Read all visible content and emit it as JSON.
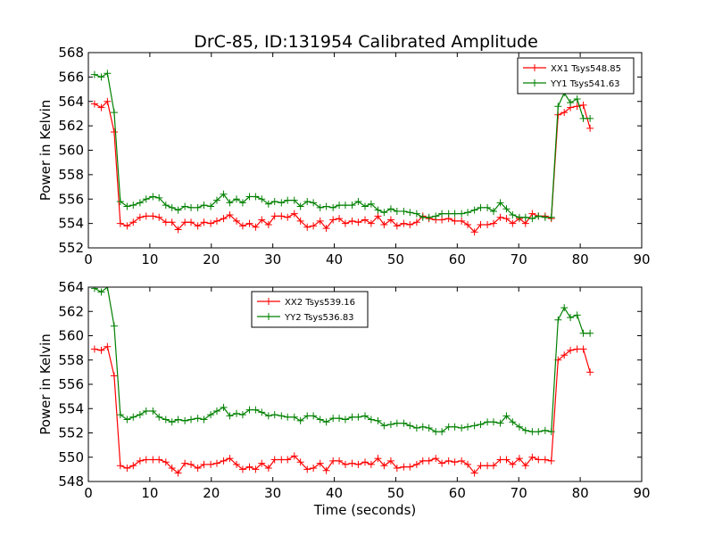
{
  "figure": {
    "title": "DrC-85, ID:131954 Calibrated Amplitude"
  },
  "chart_data": [
    {
      "type": "line",
      "title": "DrC-85, ID:131954 Calibrated Amplitude",
      "xlabel": "",
      "ylabel": "Power in Kelvin",
      "xlim": [
        0,
        90
      ],
      "ylim": [
        552,
        568
      ],
      "xticks": [
        0,
        10,
        20,
        30,
        40,
        50,
        60,
        70,
        80,
        90
      ],
      "yticks": [
        552,
        554,
        556,
        558,
        560,
        562,
        564,
        566,
        568
      ],
      "grid": false,
      "legend_position": "top-right",
      "series": [
        {
          "name": "XX1 Tsys548.85",
          "color": "#ff0000",
          "x": [
            1.0,
            2.1,
            3.1,
            4.2,
            5.2,
            6.3,
            7.3,
            8.4,
            9.4,
            10.5,
            11.5,
            12.6,
            13.6,
            14.6,
            15.7,
            16.7,
            17.8,
            18.8,
            19.9,
            20.9,
            22.0,
            23.0,
            24.1,
            25.1,
            26.2,
            27.2,
            28.2,
            29.3,
            30.3,
            31.4,
            32.4,
            33.5,
            34.5,
            35.6,
            36.6,
            37.7,
            38.7,
            39.8,
            40.8,
            41.8,
            42.9,
            43.9,
            45.0,
            46.0,
            47.1,
            48.1,
            49.2,
            50.2,
            51.3,
            52.3,
            53.4,
            54.4,
            55.4,
            56.5,
            57.5,
            58.6,
            59.6,
            60.7,
            61.7,
            62.8,
            63.8,
            64.9,
            65.9,
            67.0,
            68.0,
            69.0,
            70.1,
            71.1,
            72.2,
            73.2,
            74.3,
            75.3,
            76.4,
            77.4,
            78.4,
            79.5,
            80.5,
            81.6
          ],
          "values": [
            563.8,
            563.5,
            564.0,
            561.5,
            554.0,
            553.8,
            554.1,
            554.5,
            554.6,
            554.6,
            554.5,
            554.1,
            554.1,
            553.5,
            554.1,
            554.1,
            553.8,
            554.1,
            554.0,
            554.2,
            554.4,
            554.7,
            554.2,
            553.8,
            554.0,
            553.7,
            554.3,
            553.9,
            554.6,
            554.6,
            554.5,
            554.8,
            554.2,
            553.7,
            553.8,
            554.2,
            553.6,
            554.3,
            554.4,
            554.0,
            554.2,
            554.1,
            554.3,
            554.0,
            554.6,
            553.9,
            554.3,
            553.8,
            554.0,
            553.9,
            554.1,
            554.6,
            554.4,
            554.3,
            554.3,
            554.4,
            554.2,
            554.2,
            553.9,
            553.3,
            553.9,
            553.9,
            554.0,
            554.5,
            554.4,
            554.0,
            554.4,
            554.0,
            554.8,
            554.6,
            554.6,
            554.4,
            562.9,
            563.1,
            563.5,
            563.6,
            563.7,
            561.8
          ]
        },
        {
          "name": "YY1 Tsys541.63",
          "color": "#008000",
          "x": [
            1.0,
            2.1,
            3.1,
            4.2,
            5.2,
            6.3,
            7.3,
            8.4,
            9.4,
            10.5,
            11.5,
            12.6,
            13.6,
            14.6,
            15.7,
            16.7,
            17.8,
            18.8,
            19.9,
            20.9,
            22.0,
            23.0,
            24.1,
            25.1,
            26.2,
            27.2,
            28.2,
            29.3,
            30.3,
            31.4,
            32.4,
            33.5,
            34.5,
            35.6,
            36.6,
            37.7,
            38.7,
            39.8,
            40.8,
            41.8,
            42.9,
            43.9,
            45.0,
            46.0,
            47.1,
            48.1,
            49.2,
            50.2,
            51.3,
            52.3,
            53.4,
            54.4,
            55.4,
            56.5,
            57.5,
            58.6,
            59.6,
            60.7,
            61.7,
            62.8,
            63.8,
            64.9,
            65.9,
            67.0,
            68.0,
            69.0,
            70.1,
            71.1,
            72.2,
            73.2,
            74.3,
            75.3,
            76.4,
            77.4,
            78.4,
            79.5,
            80.5,
            81.6
          ],
          "values": [
            566.2,
            566.0,
            566.3,
            563.1,
            555.8,
            555.4,
            555.5,
            555.7,
            556.0,
            556.2,
            556.1,
            555.5,
            555.3,
            555.1,
            555.4,
            555.3,
            555.3,
            555.5,
            555.4,
            555.9,
            556.4,
            555.7,
            556.0,
            555.7,
            556.2,
            556.2,
            556.0,
            555.6,
            555.8,
            555.7,
            555.9,
            555.9,
            555.4,
            555.8,
            555.7,
            555.3,
            555.4,
            555.3,
            555.5,
            555.5,
            555.5,
            555.8,
            555.4,
            555.6,
            555.1,
            554.9,
            555.2,
            555.0,
            555.0,
            554.9,
            554.8,
            554.5,
            554.5,
            554.6,
            554.8,
            554.8,
            554.8,
            554.8,
            554.9,
            555.1,
            555.3,
            555.3,
            555.0,
            555.7,
            555.2,
            554.7,
            554.5,
            554.5,
            554.4,
            554.6,
            554.5,
            554.5,
            563.6,
            564.7,
            563.9,
            564.2,
            562.6,
            562.6
          ]
        }
      ]
    },
    {
      "type": "line",
      "title": "",
      "xlabel": "Time (seconds)",
      "ylabel": "Power in Kelvin",
      "xlim": [
        0,
        90
      ],
      "ylim": [
        548,
        564
      ],
      "xticks": [
        0,
        10,
        20,
        30,
        40,
        50,
        60,
        70,
        80,
        90
      ],
      "yticks": [
        548,
        550,
        552,
        554,
        556,
        558,
        560,
        562,
        564
      ],
      "grid": false,
      "legend_position": "top-center",
      "series": [
        {
          "name": "XX2 Tsys539.16",
          "color": "#ff0000",
          "x": [
            1.0,
            2.1,
            3.1,
            4.2,
            5.2,
            6.3,
            7.3,
            8.4,
            9.4,
            10.5,
            11.5,
            12.6,
            13.6,
            14.6,
            15.7,
            16.7,
            17.8,
            18.8,
            19.9,
            20.9,
            22.0,
            23.0,
            24.1,
            25.1,
            26.2,
            27.2,
            28.2,
            29.3,
            30.3,
            31.4,
            32.4,
            33.5,
            34.5,
            35.6,
            36.6,
            37.7,
            38.7,
            39.8,
            40.8,
            41.8,
            42.9,
            43.9,
            45.0,
            46.0,
            47.1,
            48.1,
            49.2,
            50.2,
            51.3,
            52.3,
            53.4,
            54.4,
            55.4,
            56.5,
            57.5,
            58.6,
            59.6,
            60.7,
            61.7,
            62.8,
            63.8,
            64.9,
            65.9,
            67.0,
            68.0,
            69.0,
            70.1,
            71.1,
            72.2,
            73.2,
            74.3,
            75.3,
            76.4,
            77.4,
            78.4,
            79.5,
            80.5,
            81.6
          ],
          "values": [
            558.9,
            558.8,
            559.1,
            556.7,
            549.3,
            549.1,
            549.3,
            549.7,
            549.8,
            549.8,
            549.8,
            549.6,
            549.1,
            548.7,
            549.5,
            549.4,
            549.1,
            549.4,
            549.4,
            549.5,
            549.7,
            549.9,
            549.4,
            549.0,
            549.2,
            549.0,
            549.5,
            549.1,
            549.8,
            549.8,
            549.8,
            550.1,
            549.6,
            549.0,
            549.1,
            549.5,
            548.9,
            549.7,
            549.7,
            549.4,
            549.5,
            549.4,
            549.6,
            549.4,
            549.9,
            549.3,
            549.7,
            549.1,
            549.2,
            549.2,
            549.4,
            549.7,
            549.7,
            549.9,
            549.5,
            549.7,
            549.6,
            549.7,
            549.4,
            548.7,
            549.3,
            549.3,
            549.3,
            549.8,
            549.8,
            549.4,
            549.9,
            549.3,
            550.0,
            549.8,
            549.8,
            549.7,
            558.0,
            558.4,
            558.8,
            558.9,
            558.9,
            557.0
          ]
        },
        {
          "name": "YY2 Tsys536.83",
          "color": "#008000",
          "x": [
            1.0,
            2.1,
            3.1,
            4.2,
            5.2,
            6.3,
            7.3,
            8.4,
            9.4,
            10.5,
            11.5,
            12.6,
            13.6,
            14.6,
            15.7,
            16.7,
            17.8,
            18.8,
            19.9,
            20.9,
            22.0,
            23.0,
            24.1,
            25.1,
            26.2,
            27.2,
            28.2,
            29.3,
            30.3,
            31.4,
            32.4,
            33.5,
            34.5,
            35.6,
            36.6,
            37.7,
            38.7,
            39.8,
            40.8,
            41.8,
            42.9,
            43.9,
            45.0,
            46.0,
            47.1,
            48.1,
            49.2,
            50.2,
            51.3,
            52.3,
            53.4,
            54.4,
            55.4,
            56.5,
            57.5,
            58.6,
            59.6,
            60.7,
            61.7,
            62.8,
            63.8,
            64.9,
            65.9,
            67.0,
            68.0,
            69.0,
            70.1,
            71.1,
            72.2,
            73.2,
            74.3,
            75.3,
            76.4,
            77.4,
            78.4,
            79.5,
            80.5,
            81.6
          ],
          "values": [
            563.9,
            563.6,
            564.0,
            560.8,
            553.5,
            553.1,
            553.3,
            553.5,
            553.8,
            553.8,
            553.3,
            553.1,
            552.9,
            553.1,
            553.0,
            553.1,
            553.2,
            553.1,
            553.5,
            553.8,
            554.1,
            553.4,
            553.6,
            553.5,
            553.9,
            553.9,
            553.7,
            553.4,
            553.5,
            553.4,
            553.3,
            553.3,
            553.0,
            553.4,
            553.4,
            553.1,
            552.9,
            553.2,
            553.2,
            553.1,
            553.3,
            553.3,
            553.4,
            553.1,
            553.0,
            552.6,
            552.7,
            552.8,
            552.8,
            552.6,
            552.4,
            552.5,
            552.4,
            552.1,
            552.1,
            552.5,
            552.5,
            552.4,
            552.5,
            552.6,
            552.7,
            552.9,
            552.9,
            552.8,
            553.4,
            552.9,
            552.5,
            552.2,
            552.1,
            552.1,
            552.2,
            552.1,
            561.3,
            562.3,
            561.5,
            561.7,
            560.2,
            560.2
          ]
        }
      ]
    }
  ]
}
